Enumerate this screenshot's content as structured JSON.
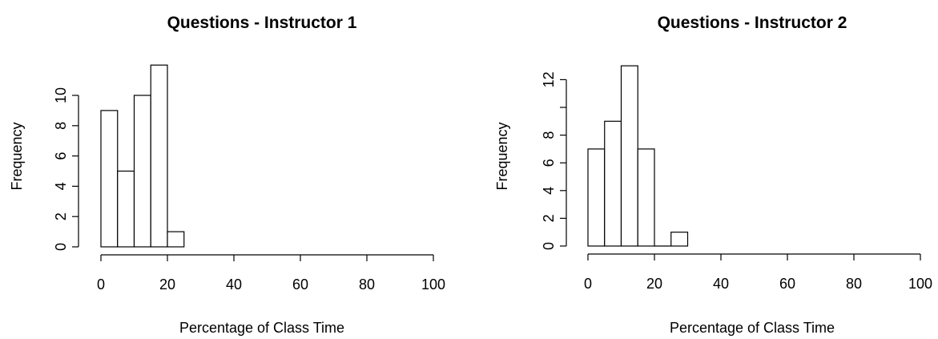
{
  "chart_data": [
    {
      "type": "bar",
      "title": "Questions - Instructor 1",
      "xlabel": "Percentage of Class Time",
      "ylabel": "Frequency",
      "xlim": [
        0,
        100
      ],
      "ylim": [
        0,
        12
      ],
      "x_ticks": [
        0,
        20,
        40,
        60,
        80,
        100
      ],
      "y_ticks": [
        0,
        2,
        4,
        6,
        8,
        10
      ],
      "bin_edges": [
        0,
        5,
        10,
        15,
        20,
        25
      ],
      "values": [
        9,
        5,
        10,
        12,
        1
      ],
      "grid": false,
      "legend": "none"
    },
    {
      "type": "bar",
      "title": "Questions - Instructor 2",
      "xlabel": "Percentage of Class Time",
      "ylabel": "Frequency",
      "xlim": [
        0,
        100
      ],
      "ylim": [
        0,
        13
      ],
      "x_ticks": [
        0,
        20,
        40,
        60,
        80,
        100
      ],
      "y_ticks": [
        0,
        2,
        4,
        6,
        8,
        10,
        12
      ],
      "y_tick_labels": [
        "0",
        "2",
        "4",
        "6",
        "8",
        "",
        "12"
      ],
      "bin_edges": [
        0,
        5,
        10,
        15,
        20,
        25,
        30
      ],
      "values": [
        7,
        9,
        13,
        7,
        0,
        1
      ],
      "grid": false,
      "legend": "none"
    }
  ]
}
